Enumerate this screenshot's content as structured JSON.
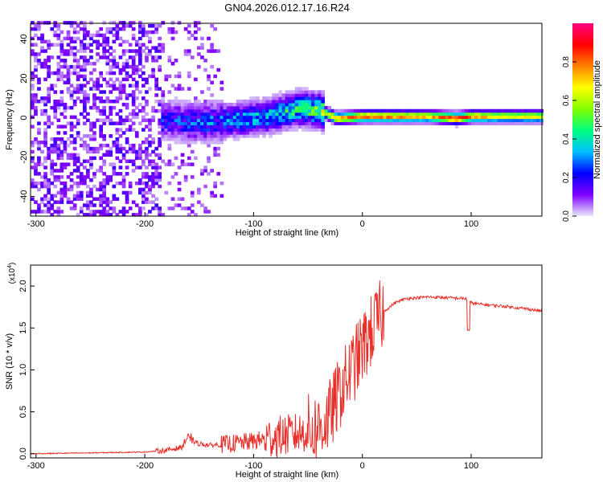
{
  "title": "GN04.2026.012.17.16.R24",
  "chart_data": [
    {
      "type": "heatmap",
      "xlabel": "Height of straight line (km)",
      "ylabel": "Frequency (Hz)",
      "xlim": [
        -305,
        165
      ],
      "ylim": [
        -50,
        48
      ],
      "x_ticks": [
        -300,
        -200,
        -100,
        0,
        100
      ],
      "y_ticks": [
        -40,
        -20,
        0,
        20,
        40
      ],
      "colorbar": {
        "label": "Normalized spectral amplitude",
        "range": [
          0,
          1
        ],
        "ticks": [
          0.0,
          0.2,
          0.4,
          0.6,
          0.8
        ],
        "colormap": [
          "#e8e8f8",
          "#8000ff",
          "#0000ff",
          "#00c0ff",
          "#00ff80",
          "#80ff00",
          "#ffff00",
          "#ff8000",
          "#ff0000",
          "#ff0080"
        ]
      },
      "ridge": {
        "description": "narrow band near 0 Hz",
        "points": [
          {
            "x": -185,
            "freq": -2,
            "amp": 0.25
          },
          {
            "x": -150,
            "freq": -3,
            "amp": 0.3
          },
          {
            "x": -120,
            "freq": -2,
            "amp": 0.35
          },
          {
            "x": -90,
            "freq": 0,
            "amp": 0.4
          },
          {
            "x": -60,
            "freq": 4,
            "amp": 0.5
          },
          {
            "x": -40,
            "freq": 3,
            "amp": 0.6
          },
          {
            "x": -25,
            "freq": -1,
            "amp": 0.75
          },
          {
            "x": 0,
            "freq": 0,
            "amp": 0.85
          },
          {
            "x": 30,
            "freq": 0,
            "amp": 0.8
          },
          {
            "x": 60,
            "freq": 0,
            "amp": 0.75
          },
          {
            "x": 85,
            "freq": -1,
            "amp": 0.9
          },
          {
            "x": 100,
            "freq": 0,
            "amp": 0.8
          },
          {
            "x": 130,
            "freq": 0,
            "amp": 0.7
          },
          {
            "x": 165,
            "freq": 0,
            "amp": 0.7
          }
        ]
      }
    },
    {
      "type": "line",
      "xlabel": "Height of straight line (km)",
      "ylabel": "SNR (10 * v/v)",
      "scale_label": "(x10",
      "scale_exp": "4",
      "scale_close": ")",
      "xlim": [
        -305,
        165
      ],
      "ylim": [
        -0.05,
        2.25
      ],
      "x_ticks": [
        -300,
        -200,
        -100,
        0,
        100
      ],
      "y_ticks": [
        0.0,
        0.5,
        1.0,
        1.5,
        2.0
      ],
      "series": [
        {
          "name": "SNR",
          "color": "#e8302a",
          "x": [
            -305,
            -250,
            -200,
            -180,
            -165,
            -160,
            -150,
            -140,
            -120,
            -100,
            -80,
            -60,
            -40,
            -30,
            -20,
            -10,
            0,
            10,
            20,
            30,
            40,
            60,
            80,
            95,
            100,
            110,
            130,
            150,
            165
          ],
          "y": [
            0.0,
            0.01,
            0.02,
            0.04,
            0.08,
            0.15,
            0.12,
            0.1,
            0.12,
            0.15,
            0.2,
            0.24,
            0.3,
            0.45,
            0.75,
            1.0,
            1.25,
            1.5,
            1.7,
            1.8,
            1.85,
            1.87,
            1.86,
            1.85,
            1.8,
            1.78,
            1.76,
            1.73,
            1.7
          ]
        }
      ]
    }
  ]
}
